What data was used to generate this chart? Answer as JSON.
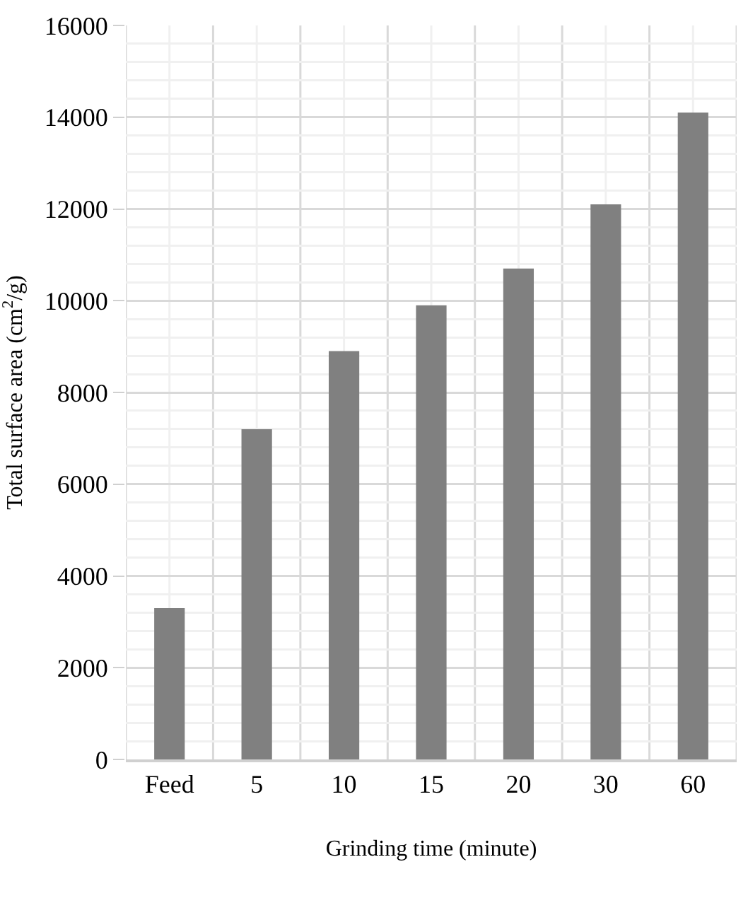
{
  "chart_data": {
    "type": "bar",
    "categories": [
      "Feed",
      "5",
      "10",
      "15",
      "20",
      "30",
      "60"
    ],
    "values": [
      3300,
      7200,
      8900,
      9900,
      10700,
      12100,
      14100
    ],
    "color": "#808080",
    "xlabel": "Grinding time (minute)",
    "ylabel": "Total surface area (cm$^{2}$/g)",
    "ylim": [
      0,
      16000
    ],
    "yticks": [
      0,
      2000,
      4000,
      6000,
      8000,
      10000,
      12000,
      14000,
      16000
    ],
    "grid": true
  }
}
